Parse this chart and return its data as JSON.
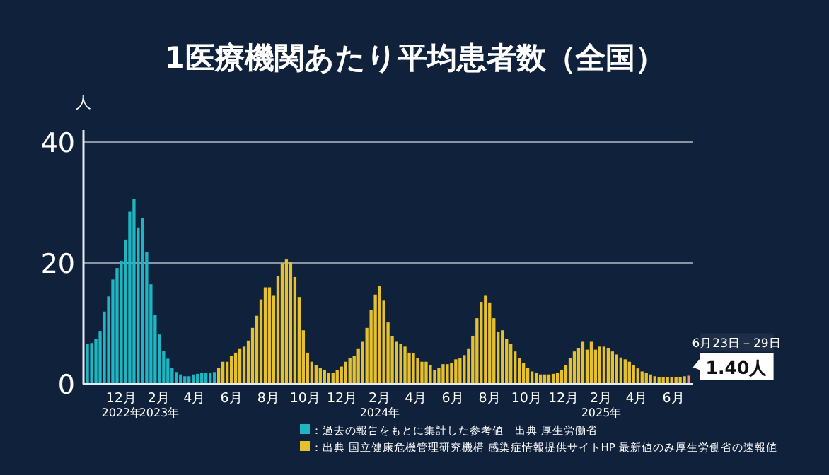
{
  "chart_data": {
    "type": "bar",
    "title": "1医療機関あたり平均患者数（全国）",
    "ylabel": "人",
    "xlim": [
      "2022-09-29",
      "2025-07-03"
    ],
    "xticks": [
      {
        "value": "2022-12-01",
        "label": "12月\n2022年"
      },
      {
        "value": "2023-02-01",
        "label": "2月\n2023年"
      },
      {
        "value": "2023-04-01",
        "label": "4月"
      },
      {
        "value": "2023-06-01",
        "label": "6月"
      },
      {
        "value": "2023-08-01",
        "label": "8月"
      },
      {
        "value": "2023-10-01",
        "label": "10月"
      },
      {
        "value": "2023-12-01",
        "label": "12月"
      },
      {
        "value": "2024-02-01",
        "label": "2月\n2024年"
      },
      {
        "value": "2024-04-01",
        "label": "4月"
      },
      {
        "value": "2024-06-01",
        "label": "6月"
      },
      {
        "value": "2024-08-01",
        "label": "8月"
      },
      {
        "value": "2024-10-01",
        "label": "10月"
      },
      {
        "value": "2024-12-01",
        "label": "12月"
      },
      {
        "value": "2025-02-01",
        "label": "2月\n2025年"
      },
      {
        "value": "2025-04-01",
        "label": "4月"
      },
      {
        "value": "2025-06-01",
        "label": "6月"
      }
    ],
    "ylim": [
      0,
      42
    ],
    "yticks": [
      0,
      20,
      40
    ],
    "grid": "y",
    "legend": "bottom",
    "series": [
      {
        "name": "：過去の報告をもとに集計した参考値　出典 厚生労働省",
        "color": "#1fb6c1",
        "x": [
          "2022-10-03",
          "2022-10-10",
          "2022-10-17",
          "2022-10-24",
          "2022-10-31",
          "2022-11-07",
          "2022-11-14",
          "2022-11-21",
          "2022-11-28",
          "2022-12-05",
          "2022-12-12",
          "2022-12-19",
          "2022-12-26",
          "2023-01-02",
          "2023-01-09",
          "2023-01-16",
          "2023-01-23",
          "2023-01-30",
          "2023-02-06",
          "2023-02-13",
          "2023-02-20",
          "2023-02-27",
          "2023-03-06",
          "2023-03-13",
          "2023-03-20",
          "2023-03-27",
          "2023-04-03",
          "2023-04-10",
          "2023-04-17",
          "2023-04-24",
          "2023-05-01"
        ],
        "values": [
          6.7,
          6.8,
          7.5,
          8.8,
          12,
          14.5,
          17.3,
          19.2,
          20.4,
          23.9,
          28.5,
          30.6,
          25.9,
          27.5,
          21.8,
          16.5,
          11.5,
          8.2,
          5.5,
          4.2,
          2.7,
          2,
          1.6,
          1.3,
          1.3,
          1.6,
          1.7,
          1.8,
          1.8,
          1.9,
          2.0
        ]
      },
      {
        "name": "：出典 国立健康危機管理研究機構 感染症情報提供サイトHP 最新値のみ厚生労働省の速報値",
        "color": "#e5c12e",
        "x": [
          "2023-05-08",
          "2023-05-15",
          "2023-05-22",
          "2023-05-29",
          "2023-06-05",
          "2023-06-12",
          "2023-06-19",
          "2023-06-26",
          "2023-07-03",
          "2023-07-10",
          "2023-07-17",
          "2023-07-24",
          "2023-07-31",
          "2023-08-07",
          "2023-08-14",
          "2023-08-21",
          "2023-08-28",
          "2023-09-04",
          "2023-09-11",
          "2023-09-18",
          "2023-09-25",
          "2023-10-02",
          "2023-10-09",
          "2023-10-16",
          "2023-10-23",
          "2023-10-30",
          "2023-11-06",
          "2023-11-13",
          "2023-11-20",
          "2023-11-27",
          "2023-12-04",
          "2023-12-11",
          "2023-12-18",
          "2023-12-25",
          "2024-01-01",
          "2024-01-08",
          "2024-01-15",
          "2024-01-22",
          "2024-01-29",
          "2024-02-05",
          "2024-02-12",
          "2024-02-19",
          "2024-02-26",
          "2024-03-04",
          "2024-03-11",
          "2024-03-18",
          "2024-03-25",
          "2024-04-01",
          "2024-04-08",
          "2024-04-15",
          "2024-04-22",
          "2024-04-29",
          "2024-05-06",
          "2024-05-13",
          "2024-05-20",
          "2024-05-27",
          "2024-06-03",
          "2024-06-10",
          "2024-06-17",
          "2024-06-24",
          "2024-07-01",
          "2024-07-08",
          "2024-07-15",
          "2024-07-22",
          "2024-07-29",
          "2024-08-05",
          "2024-08-12",
          "2024-08-19",
          "2024-08-26",
          "2024-09-02",
          "2024-09-09",
          "2024-09-16",
          "2024-09-23",
          "2024-09-30",
          "2024-10-07",
          "2024-10-14",
          "2024-10-21",
          "2024-10-28",
          "2024-11-04",
          "2024-11-11",
          "2024-11-18",
          "2024-11-25",
          "2024-12-02",
          "2024-12-09",
          "2024-12-16",
          "2024-12-23",
          "2024-12-30",
          "2025-01-06",
          "2025-01-13",
          "2025-01-20",
          "2025-01-27",
          "2025-02-03",
          "2025-02-10",
          "2025-02-17",
          "2025-02-24",
          "2025-03-03",
          "2025-03-10",
          "2025-03-17",
          "2025-03-24",
          "2025-03-31",
          "2025-04-07",
          "2025-04-14",
          "2025-04-21",
          "2025-04-28",
          "2025-05-05",
          "2025-05-12",
          "2025-05-19",
          "2025-05-26",
          "2025-06-02",
          "2025-06-09",
          "2025-06-16"
        ],
        "values": [
          2.7,
          3.7,
          3.7,
          4.7,
          5.2,
          5.8,
          6.2,
          7.2,
          9.3,
          11.3,
          14,
          16,
          16,
          14.6,
          17.9,
          20,
          20.6,
          20.2,
          17.7,
          14.4,
          8.9,
          5.2,
          3.7,
          3.1,
          2.7,
          2.3,
          1.9,
          1.9,
          2.3,
          2.9,
          3.7,
          4.3,
          4.7,
          5.8,
          7,
          9.3,
          12.2,
          14.8,
          16.2,
          13.8,
          10.2,
          7.9,
          7,
          6.6,
          6.2,
          5.2,
          5.1,
          4.3,
          3.7,
          3.7,
          3.1,
          2.3,
          2.7,
          3.3,
          3.3,
          3.5,
          4.1,
          4.3,
          4.8,
          5.8,
          8,
          10.9,
          13.6,
          14.6,
          13.5,
          10.9,
          8.6,
          8.9,
          7.5,
          6.6,
          5.4,
          4.3,
          3.5,
          2.7,
          2.1,
          1.9,
          1.6,
          1.6,
          1.6,
          1.7,
          1.9,
          2.3,
          3.1,
          4.3,
          5.4,
          5.9,
          7,
          5.7,
          7,
          5.7,
          6.2,
          6.2,
          6,
          5.4,
          4.9,
          4.4,
          4.1,
          3.7,
          3.1,
          2.6,
          2.1,
          1.9,
          1.6,
          1.3,
          1.2,
          1.2,
          1.2,
          1.2,
          1.2,
          1.2,
          1.3
        ]
      },
      {
        "color": "#f0907e",
        "x": [
          "2025-06-23"
        ],
        "values": [
          1.4
        ]
      }
    ],
    "annotations": [
      {
        "text": "6月23日－29日",
        "x": "2025-06-23",
        "y": 1.4
      },
      {
        "text": "1.40人",
        "x": "2025-06-23",
        "y": 1.4
      }
    ]
  }
}
